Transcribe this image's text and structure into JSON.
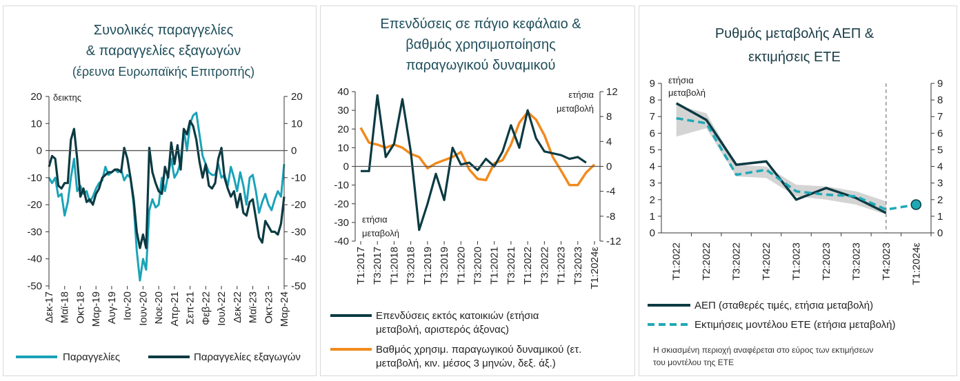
{
  "colors": {
    "teal_light": "#1aa3b8",
    "dark_teal": "#0c3a42",
    "orange": "#f28a1c",
    "model_dash": "#1fa9b6",
    "band": "#c9c9c9",
    "axis": "#333333"
  },
  "chart_data": [
    {
      "type": "line",
      "title": [
        "Συνολικές παραγγελίες",
        "& παραγγελίες εξαγωγών",
        "(έρευνα Ευρωπαϊκής Επιτροπής)"
      ],
      "ylabel_left": "δεικτης",
      "ylim_left": [
        -50,
        20
      ],
      "ylim_right": [
        -50,
        20
      ],
      "yticks": [
        20,
        10,
        0,
        -10,
        -20,
        -30,
        -40,
        -50
      ],
      "x_tick_labels": [
        "Δεκ-17",
        "Μαϊ-18",
        "Οκτ-18",
        "Μαρ-19",
        "Αυγ-19",
        "Ιαν-20",
        "Ιουν-20",
        "Νοε-20",
        "Απρ-21",
        "Σεπ-21",
        "Φεβ-22",
        "Ιουλ-22",
        "Δεκ-22",
        "Μαϊ-23",
        "Οκτ-23",
        "Μαρ-24"
      ],
      "x_range": [
        0,
        75
      ],
      "legend_position": "bottom",
      "series": [
        {
          "name": "Παραγγελίες",
          "color": "#1aa3b8",
          "values": [
            -10,
            -12,
            -10,
            -17,
            -16,
            -24,
            -19,
            -10,
            -3,
            -15,
            -13,
            -16,
            -15,
            -19,
            -17,
            -14,
            -12,
            -11,
            -6,
            -9,
            -8,
            -7,
            -8,
            -7,
            -11,
            -9,
            -10,
            -20,
            -37,
            -48,
            -40,
            -44,
            -22,
            -18,
            -21,
            -20,
            -10,
            -15,
            -9,
            -3,
            -10,
            -8,
            -4,
            8,
            0,
            10,
            13,
            14,
            6,
            -2,
            -5,
            -8,
            -9,
            -9,
            -5,
            -10,
            -9,
            -13,
            -6,
            -10,
            -15,
            -8,
            -13,
            -20,
            -10,
            -9,
            -15,
            -23,
            -19,
            -16,
            -20,
            -22,
            -18,
            -15,
            -17,
            -5
          ]
        },
        {
          "name": "Παραγγελίες εξαγωγών",
          "color": "#0c3a42",
          "values": [
            -6,
            -2,
            -3,
            -13,
            -14,
            -12,
            -12,
            4,
            8,
            -3,
            -17,
            -14,
            -19,
            -18,
            -20,
            -16,
            -14,
            -10,
            -9,
            -8,
            -8,
            -7,
            -7,
            -8,
            1,
            -3,
            -10,
            -18,
            -30,
            -36,
            -31,
            -36,
            1,
            -8,
            -12,
            -15,
            -16,
            -6,
            -10,
            3,
            -5,
            2,
            -7,
            8,
            6,
            11,
            9,
            4,
            -4,
            -10,
            -5,
            -13,
            -14,
            -12,
            -3,
            1,
            -10,
            -14,
            -17,
            -15,
            -21,
            -16,
            -23,
            -24,
            -19,
            -18,
            -25,
            -32,
            -34,
            -26,
            -28,
            -30,
            -30,
            -31,
            -27,
            -17
          ]
        }
      ]
    },
    {
      "type": "line",
      "title": [
        "Επενδύσεις σε πάγιο κεφάλαιο &",
        "βαθμός χρησιμοποίησης",
        "παραγωγικού δυναμικού"
      ],
      "ylabel_left": "ετήσια μεταβολή",
      "ylabel_right": "ετήσια μεταβολή",
      "ylim_left": [
        -40,
        40
      ],
      "ylim_right": [
        -12,
        12
      ],
      "yticks_left": [
        40,
        30,
        20,
        10,
        0,
        -10,
        -20,
        -30,
        -40
      ],
      "yticks_right": [
        12,
        8,
        4,
        0,
        -4,
        -8,
        -12
      ],
      "x_tick_labels": [
        "Τ1:2017",
        "Τ3:2017",
        "Τ1:2018",
        "Τ3:2018",
        "Τ1:2019",
        "Τ3:2019",
        "Τ1:2020",
        "Τ3:2020",
        "Τ1:2021",
        "Τ3:2021",
        "Τ1:2022",
        "Τ3:2022",
        "Τ1:2023",
        "Τ3:2023",
        "Τ1:2024ε"
      ],
      "x_range": [
        0,
        28
      ],
      "legend_position": "bottom",
      "series": [
        {
          "name": "Επενδύσεις εκτός κατοικιών (ετήσια μεταβολή, αριστερός άξονας)",
          "axis": "left",
          "color": "#0c3a42",
          "x": [
            0,
            1,
            2,
            3,
            4,
            5,
            6,
            7,
            8,
            9,
            10,
            11,
            12,
            13,
            14,
            15,
            16,
            17,
            18,
            19,
            20,
            21,
            22,
            23,
            24,
            25,
            26,
            27
          ],
          "values": [
            -2.5,
            -2.5,
            38,
            5,
            12,
            36,
            8,
            -34,
            -20,
            -4,
            -18,
            10,
            1,
            2,
            -2,
            4,
            0,
            8,
            22,
            10,
            30,
            15,
            8,
            7,
            6,
            4,
            5,
            2
          ]
        },
        {
          "name": "Βαθμός χρησιμ. παραγωγικού δυναμικού (ετ. μεταβολή, κιν. μέσος 3 μηνών, δεξ. άξ.)",
          "axis": "right",
          "color": "#f28a1c",
          "x": [
            0,
            1,
            2,
            3,
            4,
            5,
            6,
            7,
            8,
            9,
            10,
            11,
            12,
            13,
            14,
            15,
            16,
            17,
            18,
            19,
            20,
            21,
            22,
            23,
            24,
            25,
            26,
            27,
            28
          ],
          "values": [
            6.2,
            3.8,
            3.5,
            3.0,
            3.5,
            3.0,
            2.0,
            1.5,
            -0.3,
            0.5,
            1.0,
            1.5,
            2.3,
            -0.5,
            -2.0,
            -2.2,
            0.5,
            1.0,
            3.5,
            7.0,
            8.7,
            7.5,
            5.0,
            1.5,
            -0.7,
            -3.0,
            -3.0,
            -1.0,
            0.3
          ]
        }
      ]
    },
    {
      "type": "line",
      "title": [
        "Ρυθμός μεταβολής ΑΕΠ &",
        "εκτιμήσεις ΕΤΕ"
      ],
      "ylabel_left": "ετήσια μεταβολή",
      "ylim_left": [
        0,
        9
      ],
      "ylim_right": [
        0,
        9
      ],
      "yticks": [
        9,
        8,
        7,
        6,
        5,
        4,
        3,
        2,
        1,
        0
      ],
      "categories": [
        "Τ1:2022",
        "Τ2:2022",
        "Τ3:2022",
        "Τ4:2022",
        "Τ1:2023",
        "Τ2:2023",
        "Τ3:2023",
        "Τ4:2023",
        "Τ1:2024ε"
      ],
      "vertical_dashed_line_after": "Τ4:2023",
      "legend_position": "bottom",
      "series": [
        {
          "name": "ΑΕΠ (σταθερές τιμές, ετήσια μεταβολή)",
          "color": "#0c3a42",
          "values": [
            7.8,
            6.8,
            4.1,
            4.3,
            2.0,
            2.7,
            2.1,
            1.2,
            null
          ]
        },
        {
          "name": "Εκτιμήσεις μοντέλου ΕΤΕ (ετήσια μεταβολή)",
          "color": "#1fa9b6",
          "dashed": true,
          "values": [
            6.9,
            6.6,
            3.5,
            3.8,
            2.5,
            2.3,
            2.2,
            1.4,
            1.7
          ]
        },
        {
          "name": "estimate_range",
          "type": "band",
          "lower": [
            5.8,
            6.3,
            3.4,
            3.3,
            2.2,
            2.0,
            1.7,
            1.1,
            null
          ],
          "upper": [
            7.7,
            7.2,
            4.1,
            4.0,
            2.9,
            2.8,
            2.5,
            1.9,
            null
          ]
        }
      ],
      "footnote": "Η σκιασμένη περιοχή αναφέρεται στο εύρος των εκτιμήσεων του μοντέλου της ΕΤΕ"
    }
  ]
}
